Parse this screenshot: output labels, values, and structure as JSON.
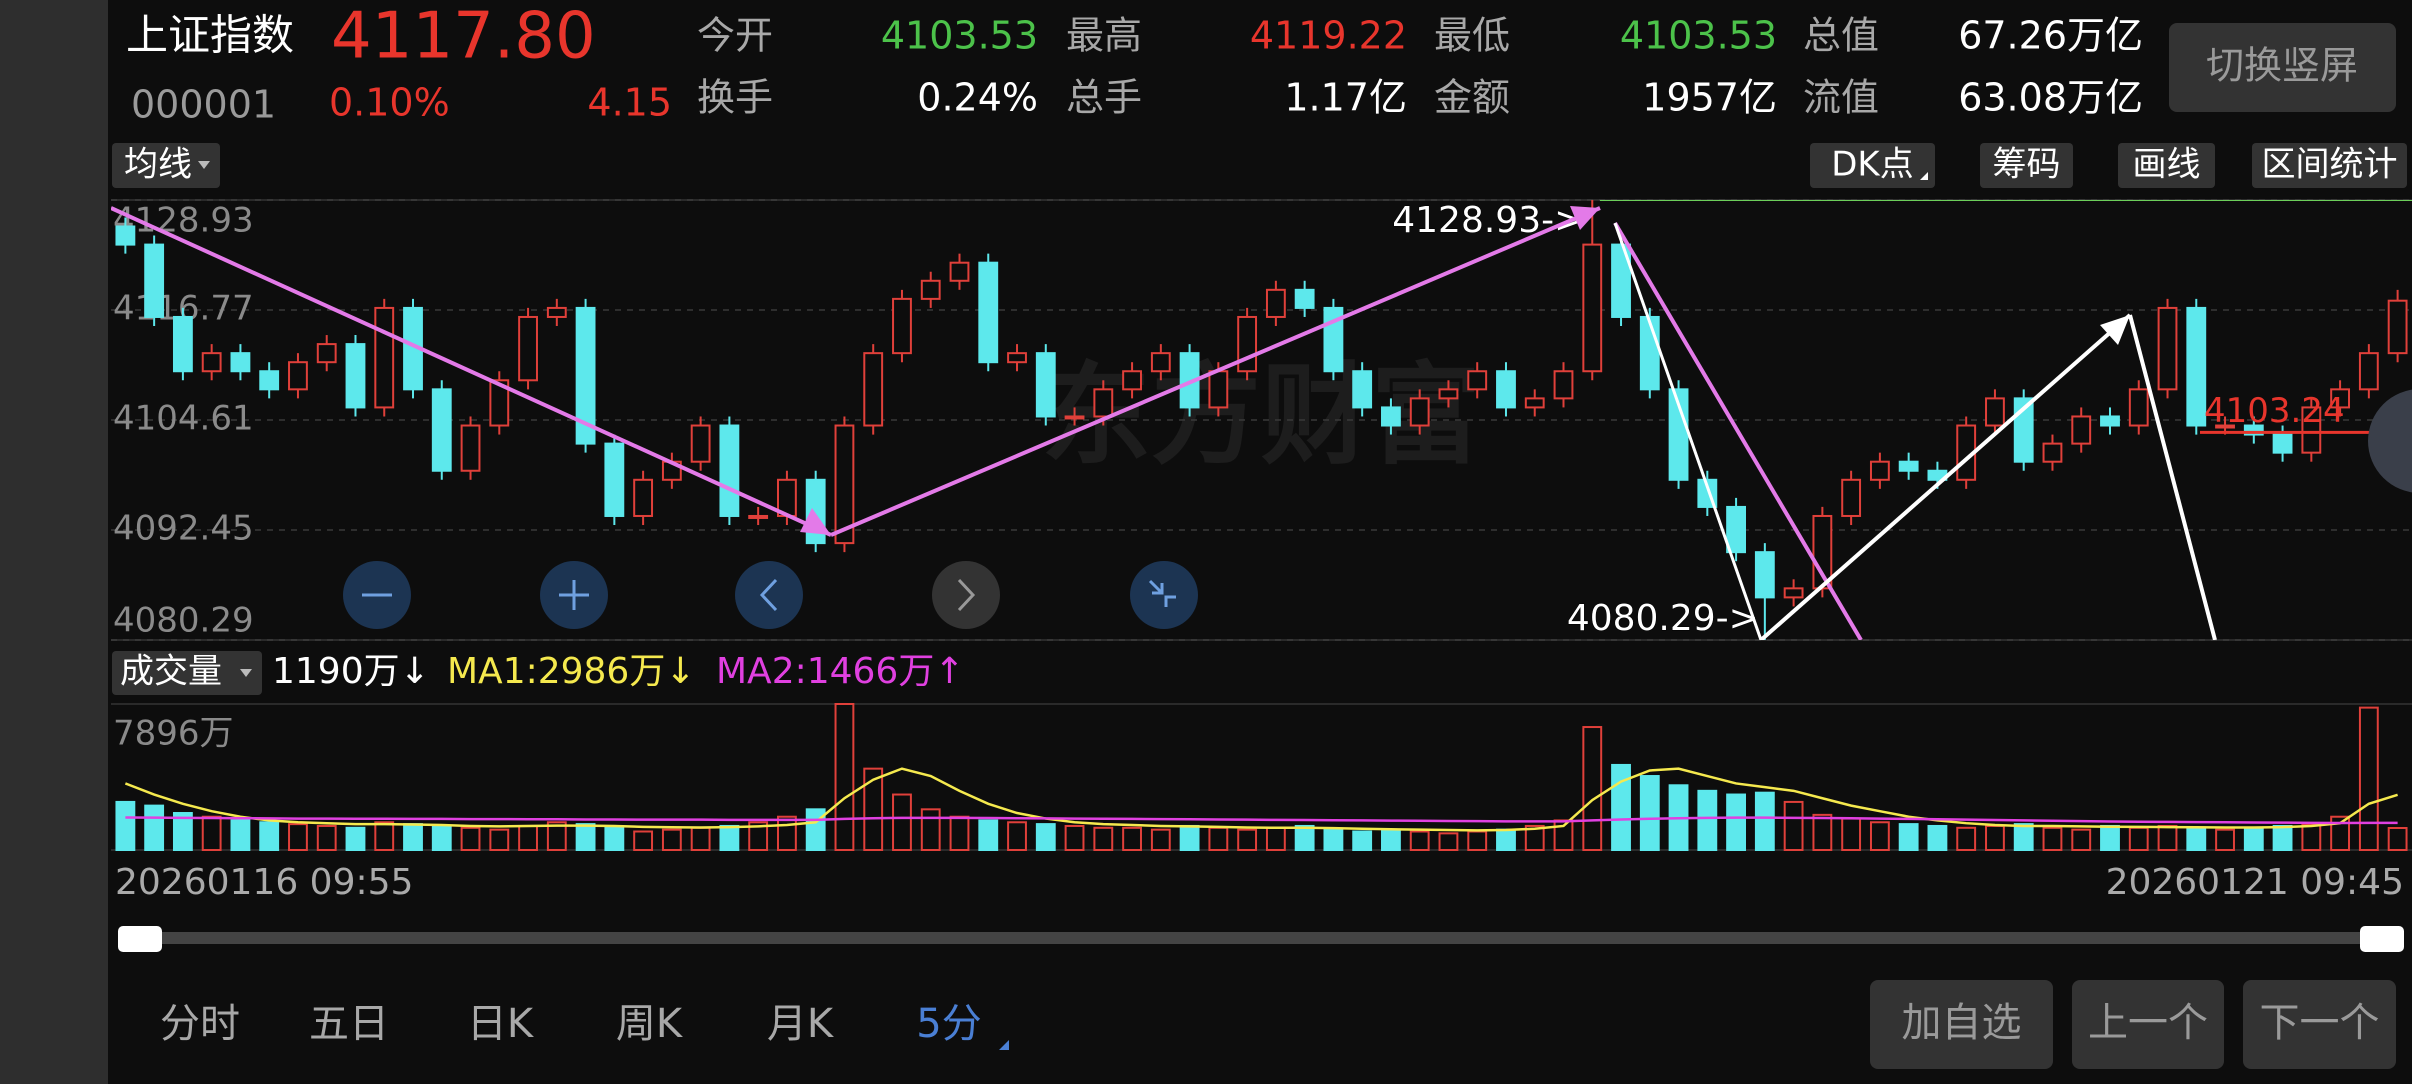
{
  "header": {
    "name": "上证指数",
    "price": "4117.80",
    "code": "000001",
    "change_pct": "0.10%",
    "change": "4.15",
    "stats": [
      {
        "label": "今开",
        "value": "4103.53",
        "color": "#4cc24a"
      },
      {
        "label": "最高",
        "value": "4119.22",
        "color": "#e8352c"
      },
      {
        "label": "最低",
        "value": "4103.53",
        "color": "#4cc24a"
      },
      {
        "label": "总值",
        "value": "67.26万亿",
        "color": "#ffffff"
      },
      {
        "label": "换手",
        "value": "0.24%",
        "color": "#ffffff"
      },
      {
        "label": "总手",
        "value": "1.17亿",
        "color": "#ffffff"
      },
      {
        "label": "金额",
        "value": "1957亿",
        "color": "#ffffff"
      },
      {
        "label": "流值",
        "value": "63.08万亿",
        "color": "#ffffff"
      }
    ],
    "toggle": "切换竖屏"
  },
  "toolbar": {
    "ma": "均线",
    "buttons": [
      "DK点",
      "筹码",
      "画线",
      "区间统计"
    ]
  },
  "watermark": "东方财富",
  "chart_data": [
    {
      "type": "candlestick",
      "up_color": "#e0403a",
      "down_color": "#5de8ec",
      "ylim": [
        4080.29,
        4128.93
      ],
      "yticks": [
        4128.93,
        4116.77,
        4104.61,
        4092.45,
        4080.29
      ],
      "open": [
        4126,
        4124,
        4116,
        4110,
        4112,
        4110,
        4108,
        4111,
        4113,
        4106,
        4117,
        4108,
        4099,
        4104,
        4109,
        4116,
        4117,
        4102,
        4094,
        4098,
        4100,
        4104,
        4094,
        4094,
        4098,
        4091,
        4104,
        4112,
        4118,
        4120,
        4122,
        4111,
        4112,
        4105,
        4105,
        4108,
        4110,
        4112,
        4106,
        4110,
        4116,
        4119,
        4117,
        4110,
        4106,
        4104,
        4107,
        4108,
        4110,
        4106,
        4107,
        4110,
        4124,
        4116,
        4108,
        4098,
        4095,
        4090,
        4085,
        4086,
        4094,
        4098,
        4100,
        4099,
        4098,
        4104,
        4107,
        4100,
        4102,
        4105,
        4104,
        4108,
        4117,
        4104,
        4104,
        4103,
        4101,
        4106,
        4108,
        4112
      ],
      "high": [
        4127,
        4125,
        4117,
        4113,
        4113,
        4111,
        4112,
        4114,
        4114,
        4118,
        4118,
        4109,
        4105,
        4110,
        4117,
        4118,
        4118,
        4103,
        4099,
        4101,
        4105,
        4105,
        4095,
        4099,
        4099,
        4105,
        4113,
        4119,
        4121,
        4123,
        4123,
        4113,
        4113,
        4106,
        4109,
        4111,
        4113,
        4113,
        4111,
        4117,
        4120,
        4120,
        4118,
        4111,
        4107,
        4108,
        4109,
        4111,
        4111,
        4108,
        4111,
        4128.93,
        4125,
        4117,
        4109,
        4099,
        4096,
        4091,
        4087,
        4095,
        4099,
        4101,
        4101,
        4100,
        4105,
        4108,
        4108,
        4103,
        4106,
        4106,
        4109,
        4118,
        4118,
        4105,
        4105,
        4104,
        4107,
        4109,
        4113,
        4119
      ],
      "low": [
        4123,
        4115,
        4109,
        4109,
        4109,
        4107,
        4107,
        4110,
        4105,
        4105,
        4107,
        4098,
        4098,
        4103,
        4108,
        4115,
        4101,
        4093,
        4093,
        4097,
        4099,
        4093,
        4093,
        4093,
        4090,
        4090,
        4103,
        4111,
        4117,
        4119,
        4110,
        4110,
        4104,
        4104,
        4104,
        4107,
        4109,
        4105,
        4105,
        4109,
        4115,
        4116,
        4109,
        4105,
        4103,
        4103,
        4106,
        4107,
        4105,
        4105,
        4106,
        4109,
        4115,
        4107,
        4097,
        4094,
        4089,
        4080.29,
        4084,
        4085,
        4093,
        4097,
        4098,
        4097,
        4097,
        4103,
        4099,
        4099,
        4101,
        4103,
        4103,
        4107,
        4103,
        4103,
        4102,
        4100,
        4100,
        4105,
        4107,
        4111
      ],
      "close": [
        4124,
        4116,
        4110,
        4112,
        4110,
        4108,
        4111,
        4113,
        4106,
        4117,
        4108,
        4099,
        4104,
        4109,
        4116,
        4117,
        4102,
        4094,
        4098,
        4100,
        4104,
        4094,
        4094,
        4098,
        4091,
        4104,
        4112,
        4118,
        4120,
        4122,
        4111,
        4112,
        4105,
        4105,
        4108,
        4110,
        4112,
        4106,
        4110,
        4116,
        4119,
        4117,
        4110,
        4106,
        4104,
        4107,
        4108,
        4110,
        4106,
        4107,
        4110,
        4124,
        4116,
        4108,
        4098,
        4095,
        4090,
        4085,
        4086,
        4094,
        4098,
        4100,
        4099,
        4098,
        4104,
        4107,
        4100,
        4102,
        4105,
        4104,
        4108,
        4117,
        4104,
        4104,
        4103,
        4101,
        4106,
        4108,
        4112,
        4117.8
      ],
      "annotations": {
        "high_label": "4128.93->",
        "low_label": "4080.29->",
        "level": 4103.24,
        "level_color": "#e8352c"
      }
    },
    {
      "type": "bar",
      "title": "成交量",
      "ylim": [
        0,
        7896
      ],
      "yticks": [
        {
          "value": 7896,
          "label": "7896万"
        }
      ],
      "values": [
        2600,
        2400,
        2000,
        1800,
        1600,
        1500,
        1400,
        1300,
        1200,
        1500,
        1400,
        1300,
        1200,
        1100,
        1300,
        1500,
        1400,
        1200,
        1000,
        1100,
        1200,
        1300,
        1500,
        1800,
        2200,
        7896,
        4400,
        3000,
        2200,
        1800,
        1600,
        1500,
        1400,
        1300,
        1200,
        1200,
        1100,
        1300,
        1200,
        1100,
        1200,
        1300,
        1100,
        1000,
        1100,
        1000,
        900,
        1000,
        1100,
        1300,
        1600,
        6650,
        4600,
        4000,
        3500,
        3200,
        3000,
        3100,
        2600,
        1900,
        1700,
        1500,
        1400,
        1300,
        1200,
        1300,
        1400,
        1200,
        1100,
        1300,
        1200,
        1300,
        1200,
        1100,
        1200,
        1300,
        1400,
        1800,
        7700,
        1190
      ],
      "legend": [
        {
          "text": "1190万↓",
          "color": "#ffffff"
        },
        {
          "text": "MA1:2986万↓",
          "color": "#f5e94e"
        },
        {
          "text": "MA2:1466万↑",
          "color": "#e040e0"
        }
      ],
      "series": [
        {
          "name": "MA1",
          "color": "#f5e94e",
          "values": [
            3600,
            3000,
            2500,
            2100,
            1800,
            1600,
            1500,
            1450,
            1400,
            1400,
            1380,
            1350,
            1300,
            1280,
            1300,
            1320,
            1320,
            1300,
            1250,
            1230,
            1220,
            1240,
            1280,
            1350,
            1500,
            2800,
            3800,
            4400,
            4000,
            3200,
            2500,
            2000,
            1700,
            1500,
            1400,
            1350,
            1300,
            1280,
            1250,
            1220,
            1200,
            1200,
            1180,
            1150,
            1120,
            1100,
            1080,
            1060,
            1080,
            1150,
            1300,
            2700,
            3700,
            4300,
            4400,
            4000,
            3600,
            3400,
            3200,
            2800,
            2400,
            2100,
            1800,
            1600,
            1450,
            1350,
            1300,
            1300,
            1280,
            1260,
            1250,
            1240,
            1230,
            1220,
            1220,
            1240,
            1300,
            1450,
            2500,
            2986
          ]
        },
        {
          "name": "MA2",
          "color": "#e040e0",
          "values": [
            1760,
            1750,
            1740,
            1730,
            1720,
            1710,
            1700,
            1700,
            1690,
            1690,
            1680,
            1680,
            1670,
            1670,
            1660,
            1660,
            1650,
            1650,
            1640,
            1640,
            1640,
            1630,
            1630,
            1630,
            1630,
            1680,
            1720,
            1740,
            1740,
            1740,
            1730,
            1720,
            1710,
            1700,
            1690,
            1680,
            1670,
            1660,
            1650,
            1640,
            1630,
            1620,
            1610,
            1600,
            1590,
            1580,
            1570,
            1560,
            1550,
            1550,
            1550,
            1600,
            1650,
            1690,
            1720,
            1740,
            1750,
            1750,
            1740,
            1730,
            1720,
            1700,
            1680,
            1660,
            1640,
            1620,
            1600,
            1580,
            1560,
            1540,
            1530,
            1520,
            1510,
            1500,
            1490,
            1480,
            1470,
            1460,
            1470,
            1466
          ]
        }
      ]
    }
  ],
  "x_labels": [
    "20260116 09:55",
    "20260121 09:45"
  ],
  "periods": [
    "分时",
    "五日",
    "日K",
    "周K",
    "月K",
    "5分"
  ],
  "actions": [
    "加自选",
    "上一个",
    "下一个"
  ]
}
